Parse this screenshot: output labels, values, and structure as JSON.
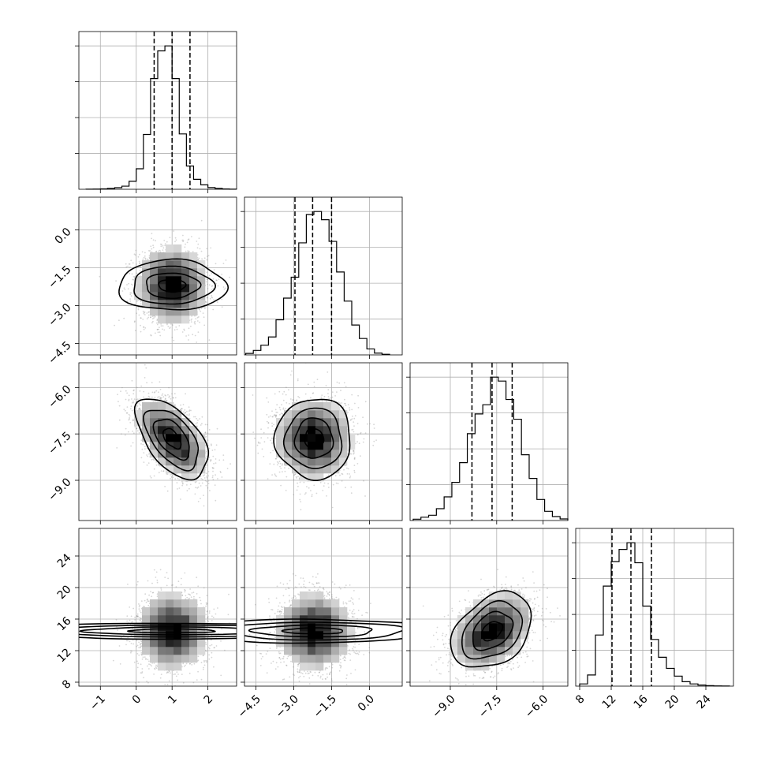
{
  "chart_data": {
    "type": "corner",
    "grid": true,
    "params": [
      {
        "range": [
          -1.6,
          2.8
        ],
        "ticks": [
          -1,
          0,
          1,
          2
        ],
        "tick_labels": [
          "−1",
          "0",
          "1",
          "2"
        ],
        "median": 1.0,
        "q16": 0.5,
        "q84": 1.5,
        "mean": 1.0,
        "sd": 0.5
      },
      {
        "range": [
          -4.95,
          1.3
        ],
        "ticks": [
          -4.5,
          -3.0,
          -1.5,
          0.0
        ],
        "tick_labels": [
          "−4.5",
          "−3.0",
          "−1.5",
          "0.0"
        ],
        "median": -2.25,
        "q16": -2.95,
        "q84": -1.5,
        "mean": -2.2,
        "sd": 0.75
      },
      {
        "range": [
          -10.3,
          -5.2
        ],
        "ticks": [
          -9.0,
          -7.5,
          -6.0
        ],
        "tick_labels": [
          "−9.0",
          "−7.5",
          "−6.0"
        ],
        "median": -7.65,
        "q16": -8.3,
        "q84": -7.0,
        "mean": -7.65,
        "sd": 0.65
      },
      {
        "range": [
          7.5,
          27.5
        ],
        "ticks": [
          8,
          12,
          16,
          20,
          24
        ],
        "tick_labels": [
          "8",
          "12",
          "16",
          "20",
          "24"
        ],
        "median": 14.5,
        "q16": 12.1,
        "q84": 17.1,
        "mean": 14.5,
        "sd": 2.4
      }
    ],
    "histograms": [
      {
        "bins": [
          -1.4,
          -1.2,
          -1.0,
          -0.8,
          -0.6,
          -0.4,
          -0.2,
          0.0,
          0.2,
          0.4,
          0.6,
          0.8,
          1.0,
          1.2,
          1.4,
          1.6,
          1.8,
          2.0,
          2.2,
          2.4,
          2.6,
          2.8
        ],
        "counts": [
          1,
          2,
          4,
          8,
          14,
          28,
          72,
          185,
          495,
          1000,
          1250,
          1295,
          1000,
          500,
          210,
          90,
          40,
          15,
          8,
          3,
          1
        ]
      },
      {
        "bins": [
          -4.9,
          -4.6,
          -4.3,
          -4.0,
          -3.7,
          -3.4,
          -3.1,
          -2.8,
          -2.5,
          -2.2,
          -1.9,
          -1.6,
          -1.3,
          -1.0,
          -0.7,
          -0.4,
          -0.1,
          0.2,
          0.5,
          0.8
        ],
        "counts": [
          10,
          30,
          65,
          120,
          235,
          380,
          520,
          750,
          940,
          960,
          905,
          760,
          555,
          360,
          200,
          110,
          40,
          12,
          4
        ]
      },
      {
        "bins": [
          -10.2,
          -9.95,
          -9.7,
          -9.45,
          -9.2,
          -8.95,
          -8.7,
          -8.45,
          -8.2,
          -7.95,
          -7.7,
          -7.45,
          -7.2,
          -6.95,
          -6.7,
          -6.45,
          -6.2,
          -5.95,
          -5.7,
          -5.45,
          -5.2
        ],
        "counts": [
          10,
          25,
          40,
          90,
          180,
          290,
          440,
          660,
          810,
          880,
          1090,
          1060,
          920,
          770,
          500,
          320,
          160,
          70,
          30,
          12
        ]
      },
      {
        "bins": [
          8,
          9,
          10,
          11,
          12,
          13,
          14,
          15,
          16,
          17,
          18,
          19,
          20,
          21,
          22,
          23,
          24,
          25,
          26,
          27
        ],
        "counts": [
          20,
          100,
          460,
          900,
          1120,
          1230,
          1290,
          1110,
          720,
          420,
          260,
          160,
          90,
          40,
          20,
          10,
          5,
          2,
          1
        ]
      }
    ],
    "pairs": [
      {
        "row": 1,
        "col": 0,
        "rho": 0.0
      },
      {
        "row": 2,
        "col": 0,
        "rho": -0.55
      },
      {
        "row": 2,
        "col": 1,
        "rho": 0.0
      },
      {
        "row": 3,
        "col": 0,
        "rho": 0.0
      },
      {
        "row": 3,
        "col": 1,
        "rho": 0.0
      },
      {
        "row": 3,
        "col": 2,
        "rho": 0.35
      }
    ],
    "contour_levels_sigma": [
      0.5,
      1.0,
      1.5,
      2.0
    ],
    "n_scatter": 2200
  }
}
